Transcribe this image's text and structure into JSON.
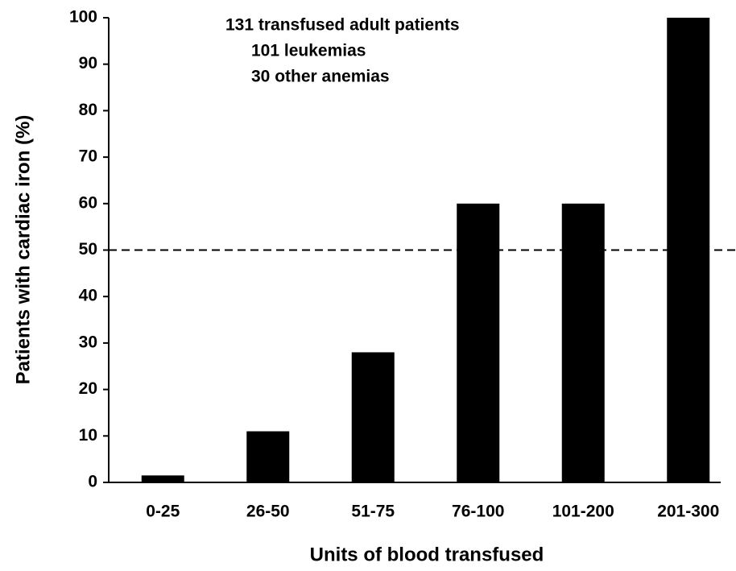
{
  "chart_data": {
    "type": "bar",
    "annotations": [
      "131 transfused adult patients",
      "101 leukemias",
      "30 other anemias"
    ],
    "x_label": "Units of blood transfused",
    "y_label": "Patients with cardiac iron (%)",
    "categories": [
      "0-25",
      "26-50",
      "51-75",
      "76-100",
      "101-200",
      "201-300"
    ],
    "values": [
      1.5,
      11,
      28,
      60,
      60,
      100
    ],
    "color": "#000000",
    "ylim": [
      0,
      100
    ],
    "yticks": [
      0,
      10,
      20,
      30,
      40,
      50,
      60,
      70,
      80,
      90,
      100
    ],
    "reference_line": 50
  }
}
